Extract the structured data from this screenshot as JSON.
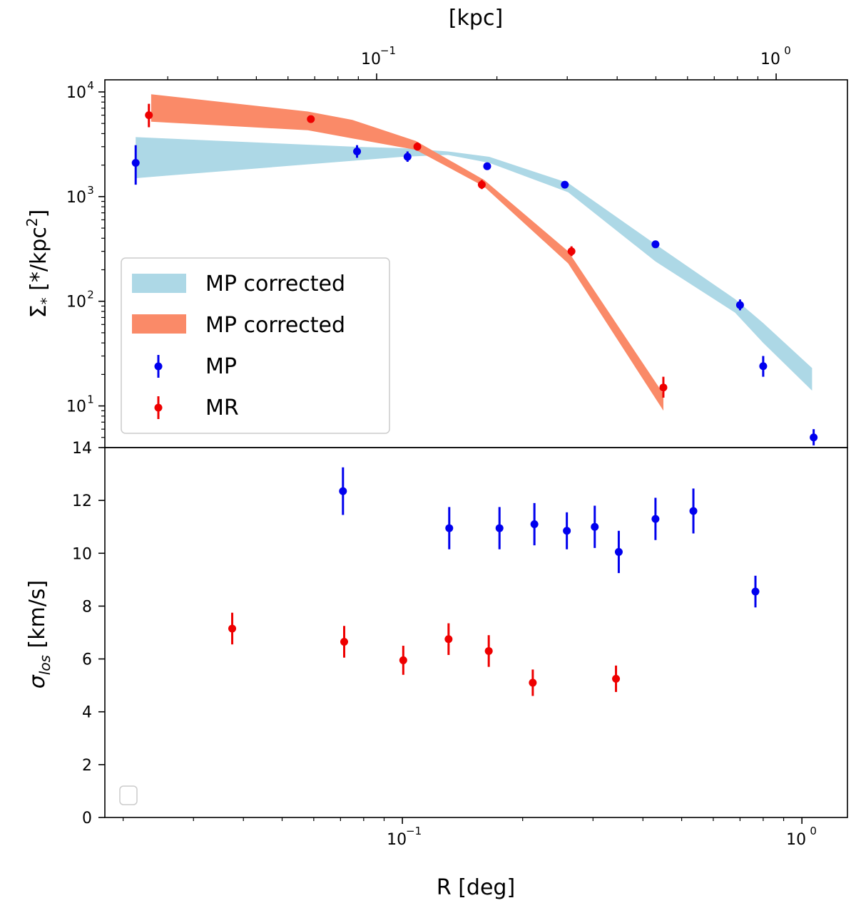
{
  "chart_data": [
    {
      "type": "scatter",
      "panel": "surface-density",
      "xscale": "log",
      "yscale": "log",
      "xlim": [
        0.018,
        1.3
      ],
      "ylim": [
        4,
        10000
      ],
      "ylabel": "Σ* [*/kpc²]",
      "ylabel_parts": {
        "symbol": "Σ",
        "subscript": "*",
        "unit_open": " [*/kpc",
        "unit_power": "2",
        "unit_close": "]"
      },
      "top_axis": {
        "label": "[kpc]",
        "ticks": [
          "10",
          "10"
        ],
        "tick_exponents": [
          "−1",
          "0"
        ],
        "tick_values_deg": [
          0.0862,
          0.862
        ]
      },
      "yticks": [
        "10",
        "10",
        "10",
        "10"
      ],
      "ytick_exponents": [
        "1",
        "2",
        "3",
        "4"
      ],
      "ytick_values": [
        10,
        100,
        1000,
        10000
      ],
      "bands": [
        {
          "name": "MP corrected",
          "color": "#add8e6",
          "r": [
            0.0215,
            0.075,
            0.1,
            0.13,
            0.165,
            0.26,
            0.43,
            0.68,
            0.8,
            1.06
          ],
          "lower": [
            1500,
            2200,
            2400,
            2500,
            2100,
            1100,
            240,
            78,
            40,
            14
          ],
          "upper": [
            3700,
            3000,
            2900,
            2700,
            2400,
            1350,
            350,
            105,
            62,
            23
          ]
        },
        {
          "name": "MP corrected",
          "color": "#fa8a68",
          "r": [
            0.0235,
            0.058,
            0.075,
            0.108,
            0.16,
            0.26,
            0.45
          ],
          "lower": [
            5200,
            4300,
            3600,
            2800,
            1250,
            230,
            9
          ],
          "upper": [
            9500,
            6500,
            5400,
            3400,
            1450,
            300,
            13
          ]
        }
      ],
      "series": [
        {
          "name": "MP",
          "color": "#0000ee",
          "r": [
            0.0215,
            0.077,
            0.103,
            0.163,
            0.255,
            0.43,
            0.7,
            0.8,
            1.07
          ],
          "values": [
            2100,
            2700,
            2400,
            1950,
            1300,
            350,
            92,
            24,
            5
          ],
          "err_low": [
            800,
            350,
            250,
            150,
            90,
            25,
            10,
            5,
            0.8
          ],
          "err_high": [
            1000,
            400,
            300,
            170,
            100,
            30,
            12,
            6,
            1.0
          ]
        },
        {
          "name": "MR",
          "color": "#ee0000",
          "r": [
            0.0232,
            0.059,
            0.109,
            0.158,
            0.265,
            0.45
          ],
          "values": [
            6000,
            5500,
            3000,
            1300,
            300,
            15
          ],
          "err_low": [
            1400,
            350,
            250,
            120,
            30,
            3
          ],
          "err_high": [
            1700,
            400,
            300,
            140,
            35,
            4
          ]
        }
      ],
      "legend": {
        "location": "lower-left",
        "entries": [
          "MP corrected",
          "MP corrected",
          "MP",
          "MR"
        ]
      }
    },
    {
      "type": "scatter",
      "panel": "velocity-dispersion",
      "xscale": "log",
      "xlim": [
        0.018,
        1.3
      ],
      "ylim": [
        0,
        14
      ],
      "xlabel": "R [deg]",
      "ylabel": "σlos [km/s]",
      "ylabel_parts": {
        "symbol": "σ",
        "subscript": "los",
        "unit": " [km/s]"
      },
      "yticks": [
        "0",
        "2",
        "4",
        "6",
        "8",
        "10",
        "12",
        "14"
      ],
      "ytick_values": [
        0,
        2,
        4,
        6,
        8,
        10,
        12,
        14
      ],
      "xticks": [
        "10",
        "10"
      ],
      "xtick_exponents": [
        "−1",
        "0"
      ],
      "xtick_values": [
        0.1,
        1
      ],
      "series": [
        {
          "name": "MP",
          "color": "#0000ee",
          "r": [
            0.071,
            0.131,
            0.175,
            0.214,
            0.258,
            0.303,
            0.348,
            0.43,
            0.535,
            0.765
          ],
          "values": [
            12.35,
            10.95,
            10.95,
            11.1,
            10.85,
            11.0,
            10.05,
            11.3,
            11.6,
            8.55
          ],
          "err": [
            0.9,
            0.8,
            0.8,
            0.8,
            0.7,
            0.8,
            0.8,
            0.8,
            0.85,
            0.6
          ]
        },
        {
          "name": "MR",
          "color": "#ee0000",
          "r": [
            0.0375,
            0.0715,
            0.1005,
            0.1305,
            0.1645,
            0.212,
            0.3425
          ],
          "values": [
            7.15,
            6.65,
            5.95,
            6.75,
            6.3,
            5.1,
            5.25
          ],
          "err": [
            0.6,
            0.6,
            0.55,
            0.6,
            0.6,
            0.5,
            0.5
          ]
        }
      ],
      "legend": {
        "location": "lower-left",
        "entries": []
      }
    }
  ]
}
